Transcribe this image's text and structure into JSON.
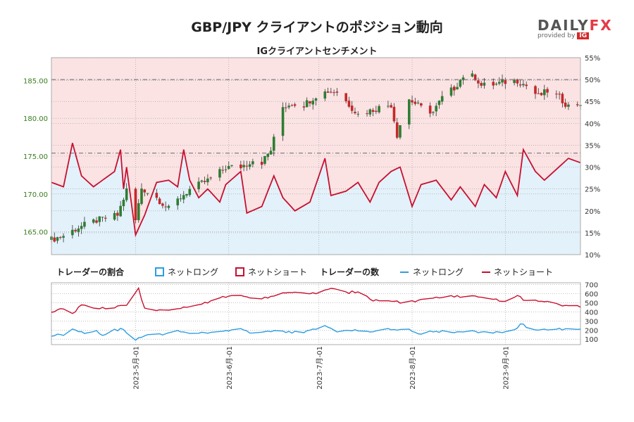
{
  "page": {
    "title": "GBP/JPY クライアントのポジション動向",
    "subtitle": "IGクライアントセンチメント",
    "logo": {
      "word_main": "DAILY",
      "word_accent": "FX",
      "provided_by": "provided by",
      "brand": "IG"
    }
  },
  "colors": {
    "price_axis": "#3a7d1e",
    "long": "#2d9ee0",
    "short": "#c8102e",
    "long_fill": "#e3f1fa",
    "short_fill": "#fbe3e4",
    "candle_up": "#2e7d32",
    "candle_down": "#c62828"
  },
  "chart_data": [
    {
      "type": "candlestick",
      "y_left": {
        "label": "",
        "range": [
          162,
          188
        ],
        "ticks": [
          "165.00",
          "170.00",
          "175.00",
          "180.00",
          "185.00"
        ]
      },
      "y_right": {
        "label": "",
        "range": [
          10,
          55
        ],
        "ticks": [
          "10%",
          "15%",
          "20%",
          "25%",
          "30%",
          "35%",
          "40%",
          "45%",
          "50%",
          "55%"
        ]
      },
      "x_ticks": [
        "2023-5月-01",
        "2023-6月-01",
        "2023-7月-01",
        "2023-8月-01",
        "2023-9月-01"
      ],
      "x_start": "2023-04-03",
      "x_end": "2023-09-26",
      "reference_lines": [
        {
          "axis": "right",
          "value": 50
        },
        {
          "axis": "left",
          "value": 175.4
        }
      ],
      "price_keypoints": [
        [
          "2023-04-03",
          164.0
        ],
        [
          "2023-04-07",
          164.5
        ],
        [
          "2023-04-12",
          165.6
        ],
        [
          "2023-04-18",
          166.5
        ],
        [
          "2023-04-25",
          167.2
        ],
        [
          "2023-04-28",
          170.5
        ],
        [
          "2023-05-01",
          166.5
        ],
        [
          "2023-05-03",
          170.8
        ],
        [
          "2023-05-08",
          169.5
        ],
        [
          "2023-05-12",
          168.0
        ],
        [
          "2023-05-16",
          169.6
        ],
        [
          "2023-05-19",
          170.6
        ],
        [
          "2023-05-26",
          172.0
        ],
        [
          "2023-05-31",
          173.5
        ],
        [
          "2023-06-05",
          173.6
        ],
        [
          "2023-06-09",
          174.5
        ],
        [
          "2023-06-12",
          174.2
        ],
        [
          "2023-06-15",
          175.8
        ],
        [
          "2023-06-19",
          181.5
        ],
        [
          "2023-06-22",
          182.0
        ],
        [
          "2023-06-26",
          181.8
        ],
        [
          "2023-06-30",
          183.0
        ],
        [
          "2023-07-04",
          183.6
        ],
        [
          "2023-07-07",
          183.5
        ],
        [
          "2023-07-12",
          181.4
        ],
        [
          "2023-07-14",
          180.5
        ],
        [
          "2023-07-18",
          181.0
        ],
        [
          "2023-07-21",
          181.4
        ],
        [
          "2023-07-25",
          181.8
        ],
        [
          "2023-07-27",
          177.8
        ],
        [
          "2023-07-28",
          179.2
        ],
        [
          "2023-07-31",
          182.5
        ],
        [
          "2023-08-04",
          181.4
        ],
        [
          "2023-08-08",
          180.8
        ],
        [
          "2023-08-11",
          182.7
        ],
        [
          "2023-08-15",
          184.0
        ],
        [
          "2023-08-18",
          185.6
        ],
        [
          "2023-08-22",
          185.5
        ],
        [
          "2023-08-24",
          184.3
        ],
        [
          "2023-08-29",
          184.5
        ],
        [
          "2023-09-01",
          184.8
        ],
        [
          "2023-09-05",
          185.0
        ],
        [
          "2023-09-08",
          184.3
        ],
        [
          "2023-09-12",
          182.9
        ],
        [
          "2023-09-15",
          183.6
        ],
        [
          "2023-09-19",
          182.7
        ],
        [
          "2023-09-22",
          181.6
        ],
        [
          "2023-09-26",
          182.0
        ]
      ],
      "net_long_pct_keypoints": [
        [
          "2023-04-03",
          26.5
        ],
        [
          "2023-04-07",
          25.5
        ],
        [
          "2023-04-10",
          35.5
        ],
        [
          "2023-04-13",
          28.0
        ],
        [
          "2023-04-17",
          25.5
        ],
        [
          "2023-04-20",
          27.0
        ],
        [
          "2023-04-24",
          29.0
        ],
        [
          "2023-04-26",
          34.0
        ],
        [
          "2023-04-27",
          25.0
        ],
        [
          "2023-04-28",
          30.0
        ],
        [
          "2023-05-01",
          14.5
        ],
        [
          "2023-05-04",
          19.0
        ],
        [
          "2023-05-08",
          26.5
        ],
        [
          "2023-05-12",
          27.0
        ],
        [
          "2023-05-15",
          25.5
        ],
        [
          "2023-05-17",
          34.0
        ],
        [
          "2023-05-19",
          27.0
        ],
        [
          "2023-05-22",
          23.0
        ],
        [
          "2023-05-25",
          25.0
        ],
        [
          "2023-05-29",
          22.0
        ],
        [
          "2023-05-31",
          26.0
        ],
        [
          "2023-06-05",
          29.0
        ],
        [
          "2023-06-07",
          19.5
        ],
        [
          "2023-06-12",
          21.0
        ],
        [
          "2023-06-16",
          28.0
        ],
        [
          "2023-06-19",
          23.0
        ],
        [
          "2023-06-23",
          20.0
        ],
        [
          "2023-06-28",
          22.0
        ],
        [
          "2023-07-03",
          32.0
        ],
        [
          "2023-07-05",
          23.5
        ],
        [
          "2023-07-10",
          24.5
        ],
        [
          "2023-07-14",
          26.5
        ],
        [
          "2023-07-18",
          22.0
        ],
        [
          "2023-07-21",
          26.5
        ],
        [
          "2023-07-25",
          29.0
        ],
        [
          "2023-07-28",
          30.0
        ],
        [
          "2023-08-01",
          21.0
        ],
        [
          "2023-08-04",
          26.0
        ],
        [
          "2023-08-09",
          27.0
        ],
        [
          "2023-08-14",
          22.5
        ],
        [
          "2023-08-17",
          25.5
        ],
        [
          "2023-08-22",
          21.0
        ],
        [
          "2023-08-25",
          26.0
        ],
        [
          "2023-08-29",
          23.0
        ],
        [
          "2023-09-01",
          29.0
        ],
        [
          "2023-09-05",
          23.5
        ],
        [
          "2023-09-07",
          34.0
        ],
        [
          "2023-09-11",
          29.0
        ],
        [
          "2023-09-14",
          27.0
        ],
        [
          "2023-09-18",
          29.5
        ],
        [
          "2023-09-22",
          32.0
        ],
        [
          "2023-09-26",
          31.0
        ]
      ],
      "net_short_pct_keypoints": [
        [
          "2023-04-03",
          73.5
        ],
        [
          "2023-04-10",
          64.5
        ],
        [
          "2023-05-01",
          85.5
        ],
        [
          "2023-07-03",
          68.0
        ],
        [
          "2023-09-07",
          66.0
        ],
        [
          "2023-09-26",
          69.0
        ]
      ]
    },
    {
      "type": "line",
      "y_right": {
        "label": "",
        "range": [
          40,
          720
        ],
        "ticks": [
          "100",
          "200",
          "300",
          "400",
          "500",
          "600",
          "700"
        ]
      },
      "series": [
        {
          "name": "ネットロング",
          "keypoints": [
            [
              "2023-04-03",
              145
            ],
            [
              "2023-04-07",
              150
            ],
            [
              "2023-04-10",
              210
            ],
            [
              "2023-04-14",
              175
            ],
            [
              "2023-04-18",
              190
            ],
            [
              "2023-04-20",
              150
            ],
            [
              "2023-04-24",
              200
            ],
            [
              "2023-04-27",
              210
            ],
            [
              "2023-05-01",
              90
            ],
            [
              "2023-05-05",
              150
            ],
            [
              "2023-05-10",
              155
            ],
            [
              "2023-05-15",
              200
            ],
            [
              "2023-05-19",
              160
            ],
            [
              "2023-05-24",
              175
            ],
            [
              "2023-05-30",
              190
            ],
            [
              "2023-06-05",
              205
            ],
            [
              "2023-06-09",
              160
            ],
            [
              "2023-06-15",
              185
            ],
            [
              "2023-06-20",
              180
            ],
            [
              "2023-06-26",
              175
            ],
            [
              "2023-06-30",
              210
            ],
            [
              "2023-07-03",
              250
            ],
            [
              "2023-07-07",
              180
            ],
            [
              "2023-07-13",
              200
            ],
            [
              "2023-07-18",
              190
            ],
            [
              "2023-07-24",
              205
            ],
            [
              "2023-07-31",
              200
            ],
            [
              "2023-08-03",
              160
            ],
            [
              "2023-08-08",
              190
            ],
            [
              "2023-08-14",
              180
            ],
            [
              "2023-08-20",
              185
            ],
            [
              "2023-08-25",
              175
            ],
            [
              "2023-08-31",
              180
            ],
            [
              "2023-09-04",
              195
            ],
            [
              "2023-09-06",
              270
            ],
            [
              "2023-09-10",
              205
            ],
            [
              "2023-09-15",
              200
            ],
            [
              "2023-09-20",
              210
            ],
            [
              "2023-09-26",
              220
            ]
          ]
        },
        {
          "name": "ネットショート",
          "keypoints": [
            [
              "2023-04-03",
              390
            ],
            [
              "2023-04-07",
              440
            ],
            [
              "2023-04-10",
              380
            ],
            [
              "2023-04-13",
              480
            ],
            [
              "2023-04-17",
              430
            ],
            [
              "2023-04-21",
              440
            ],
            [
              "2023-04-26",
              460
            ],
            [
              "2023-04-28",
              480
            ],
            [
              "2023-05-02",
              650
            ],
            [
              "2023-05-04",
              440
            ],
            [
              "2023-05-09",
              415
            ],
            [
              "2023-05-15",
              430
            ],
            [
              "2023-05-20",
              460
            ],
            [
              "2023-05-24",
              500
            ],
            [
              "2023-05-30",
              560
            ],
            [
              "2023-06-05",
              580
            ],
            [
              "2023-06-10",
              550
            ],
            [
              "2023-06-14",
              560
            ],
            [
              "2023-06-19",
              600
            ],
            [
              "2023-06-23",
              610
            ],
            [
              "2023-06-30",
              600
            ],
            [
              "2023-07-05",
              655
            ],
            [
              "2023-07-10",
              610
            ],
            [
              "2023-07-14",
              625
            ],
            [
              "2023-07-19",
              530
            ],
            [
              "2023-07-25",
              520
            ],
            [
              "2023-07-30",
              500
            ],
            [
              "2023-08-03",
              520
            ],
            [
              "2023-08-10",
              560
            ],
            [
              "2023-08-16",
              570
            ],
            [
              "2023-08-21",
              575
            ],
            [
              "2023-08-28",
              550
            ],
            [
              "2023-09-01",
              505
            ],
            [
              "2023-09-05",
              580
            ],
            [
              "2023-09-08",
              520
            ],
            [
              "2023-09-15",
              520
            ],
            [
              "2023-09-20",
              470
            ],
            [
              "2023-09-24",
              490
            ],
            [
              "2023-09-26",
              450
            ]
          ]
        }
      ]
    }
  ],
  "legend": {
    "ratio_title": "トレーダーの割合",
    "ratio_long": "ネットロング",
    "ratio_short": "ネットショート",
    "count_title": "トレーダーの数",
    "count_long": "ネットロング",
    "count_short": "ネットショート"
  }
}
